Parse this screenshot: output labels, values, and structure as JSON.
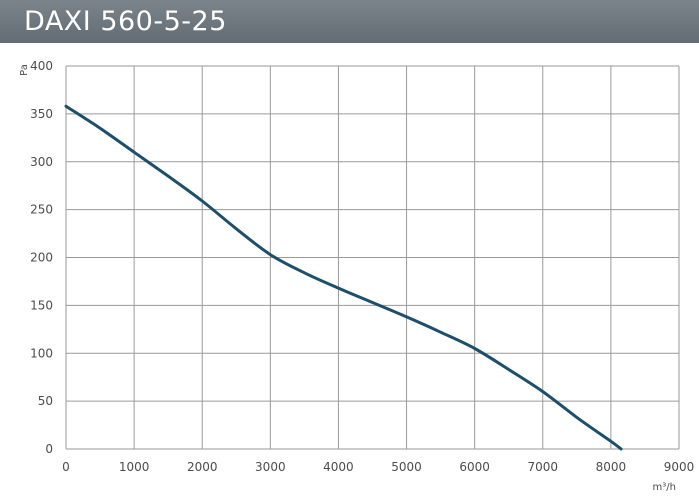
{
  "header": {
    "title": "DAXI 560-5-25"
  },
  "chart_data": {
    "type": "line",
    "title": "DAXI 560-5-25",
    "xlabel": "m³/h",
    "ylabel": "Pa",
    "xlim": [
      0,
      9000
    ],
    "ylim": [
      0,
      400
    ],
    "xticks": [
      0,
      1000,
      2000,
      3000,
      4000,
      5000,
      6000,
      7000,
      8000,
      9000
    ],
    "yticks": [
      0,
      50,
      100,
      150,
      200,
      250,
      300,
      350,
      400
    ],
    "grid": true,
    "series": [
      {
        "color": "#1b4f6b",
        "x": [
          0,
          500,
          1000,
          1500,
          2000,
          2500,
          3000,
          3500,
          4000,
          4500,
          5000,
          5500,
          6000,
          6500,
          7000,
          7500,
          8000,
          8150
        ],
        "y": [
          358,
          335,
          310,
          285,
          259,
          230,
          203,
          184,
          168,
          153,
          138,
          122,
          105,
          83,
          60,
          33,
          8,
          0
        ]
      }
    ]
  }
}
